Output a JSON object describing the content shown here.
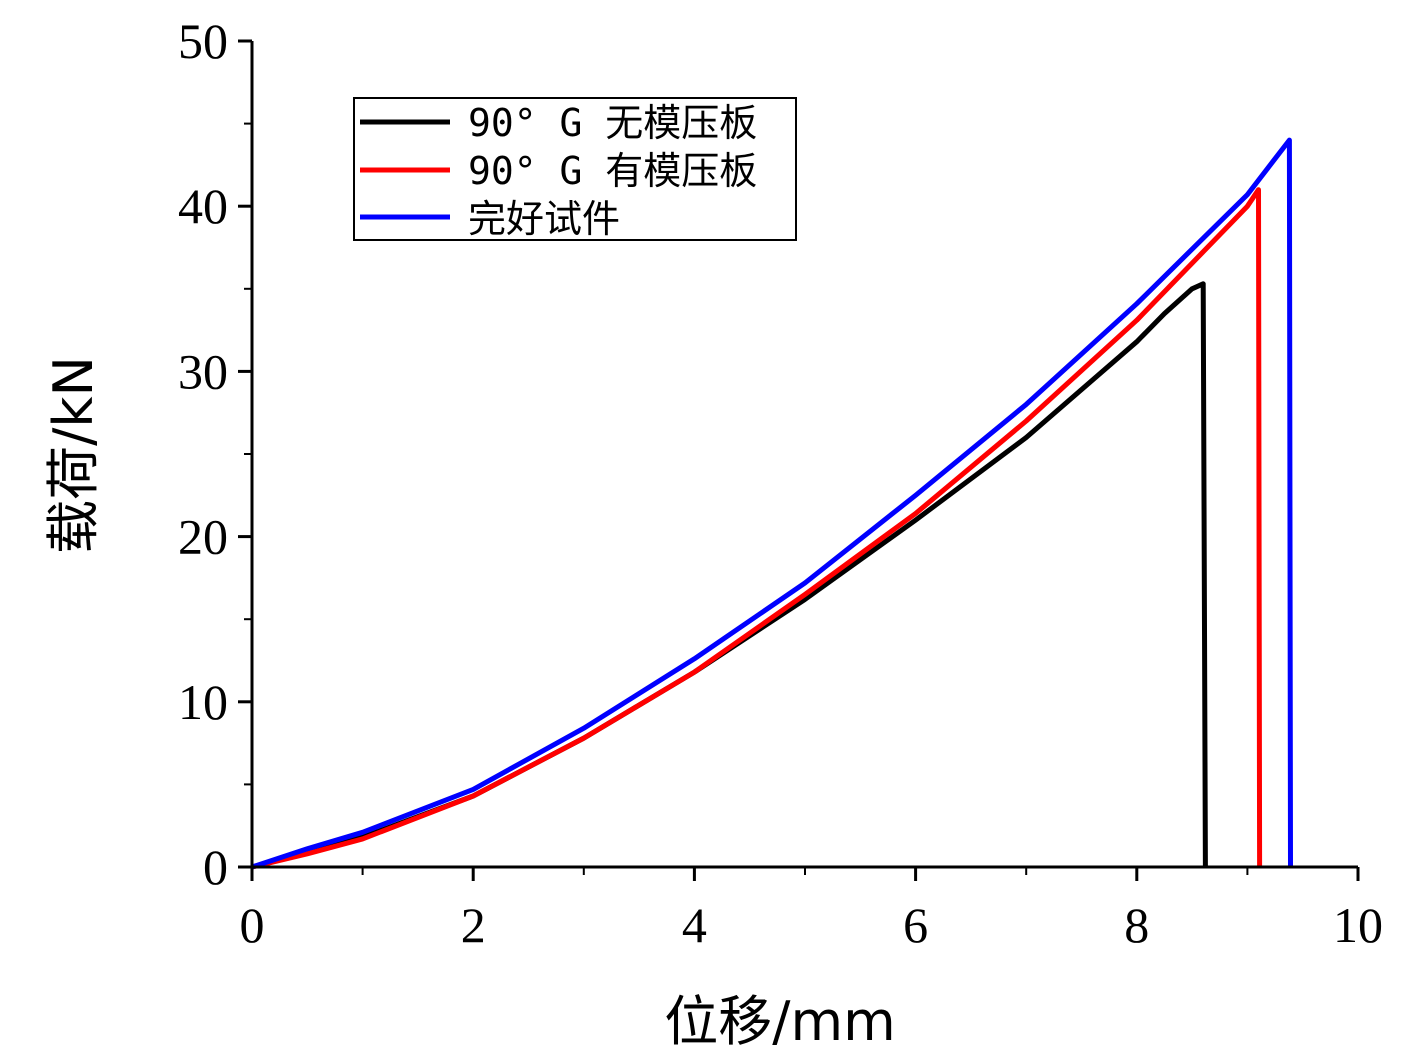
{
  "chart_data": {
    "type": "line",
    "xlabel": "位移/mm",
    "ylabel": "载荷/kN",
    "xlim": [
      0,
      10
    ],
    "ylim": [
      0,
      50
    ],
    "xticks": [
      0,
      2,
      4,
      6,
      8,
      10
    ],
    "yticks": [
      0,
      10,
      20,
      30,
      40,
      50
    ],
    "grid": false,
    "legend_position": "top-left",
    "series": [
      {
        "name": "90° G 无模压板",
        "color": "#000000",
        "x": [
          0,
          0.5,
          1,
          2,
          3,
          4,
          5,
          6,
          7,
          8,
          8.25,
          8.5,
          8.6,
          8.62
        ],
        "y": [
          0,
          0.9,
          1.8,
          4.3,
          7.8,
          11.8,
          16.2,
          21.0,
          26.0,
          31.8,
          33.5,
          35.0,
          35.3,
          0
        ]
      },
      {
        "name": "90° G 有模压板",
        "color": "#ff0000",
        "x": [
          0,
          0.5,
          1,
          2,
          3,
          4,
          5,
          6,
          7,
          8,
          9,
          9.1,
          9.11
        ],
        "y": [
          0,
          0.8,
          1.7,
          4.3,
          7.8,
          11.8,
          16.5,
          21.4,
          27.0,
          33.1,
          40.0,
          41.0,
          0
        ]
      },
      {
        "name": "完好试件",
        "color": "#0000ff",
        "x": [
          0,
          0.5,
          1,
          2,
          3,
          4,
          5,
          6,
          7,
          8,
          9,
          9.38,
          9.39
        ],
        "y": [
          0,
          1.1,
          2.1,
          4.7,
          8.4,
          12.6,
          17.2,
          22.5,
          28.0,
          34.1,
          40.7,
          44.0,
          0
        ]
      }
    ]
  }
}
